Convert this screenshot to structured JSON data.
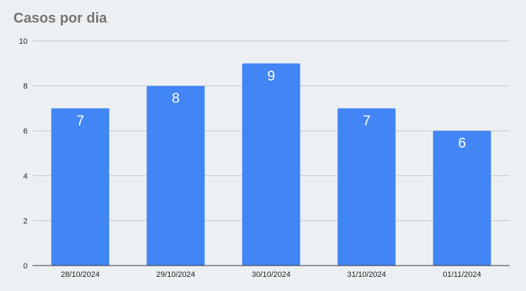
{
  "chart_data": {
    "type": "bar",
    "title": "Casos por dia",
    "categories": [
      "28/10/2024",
      "29/10/2024",
      "30/10/2024",
      "31/10/2024",
      "01/11/2024"
    ],
    "values": [
      7,
      8,
      9,
      7,
      6
    ],
    "xlabel": "",
    "ylabel": "",
    "ylim": [
      0,
      10
    ],
    "yticks": [
      0,
      2,
      4,
      6,
      8,
      10
    ],
    "grid": true,
    "legend": "none",
    "bar_color": "#4285f4",
    "data_label_color": "#ffffff"
  }
}
